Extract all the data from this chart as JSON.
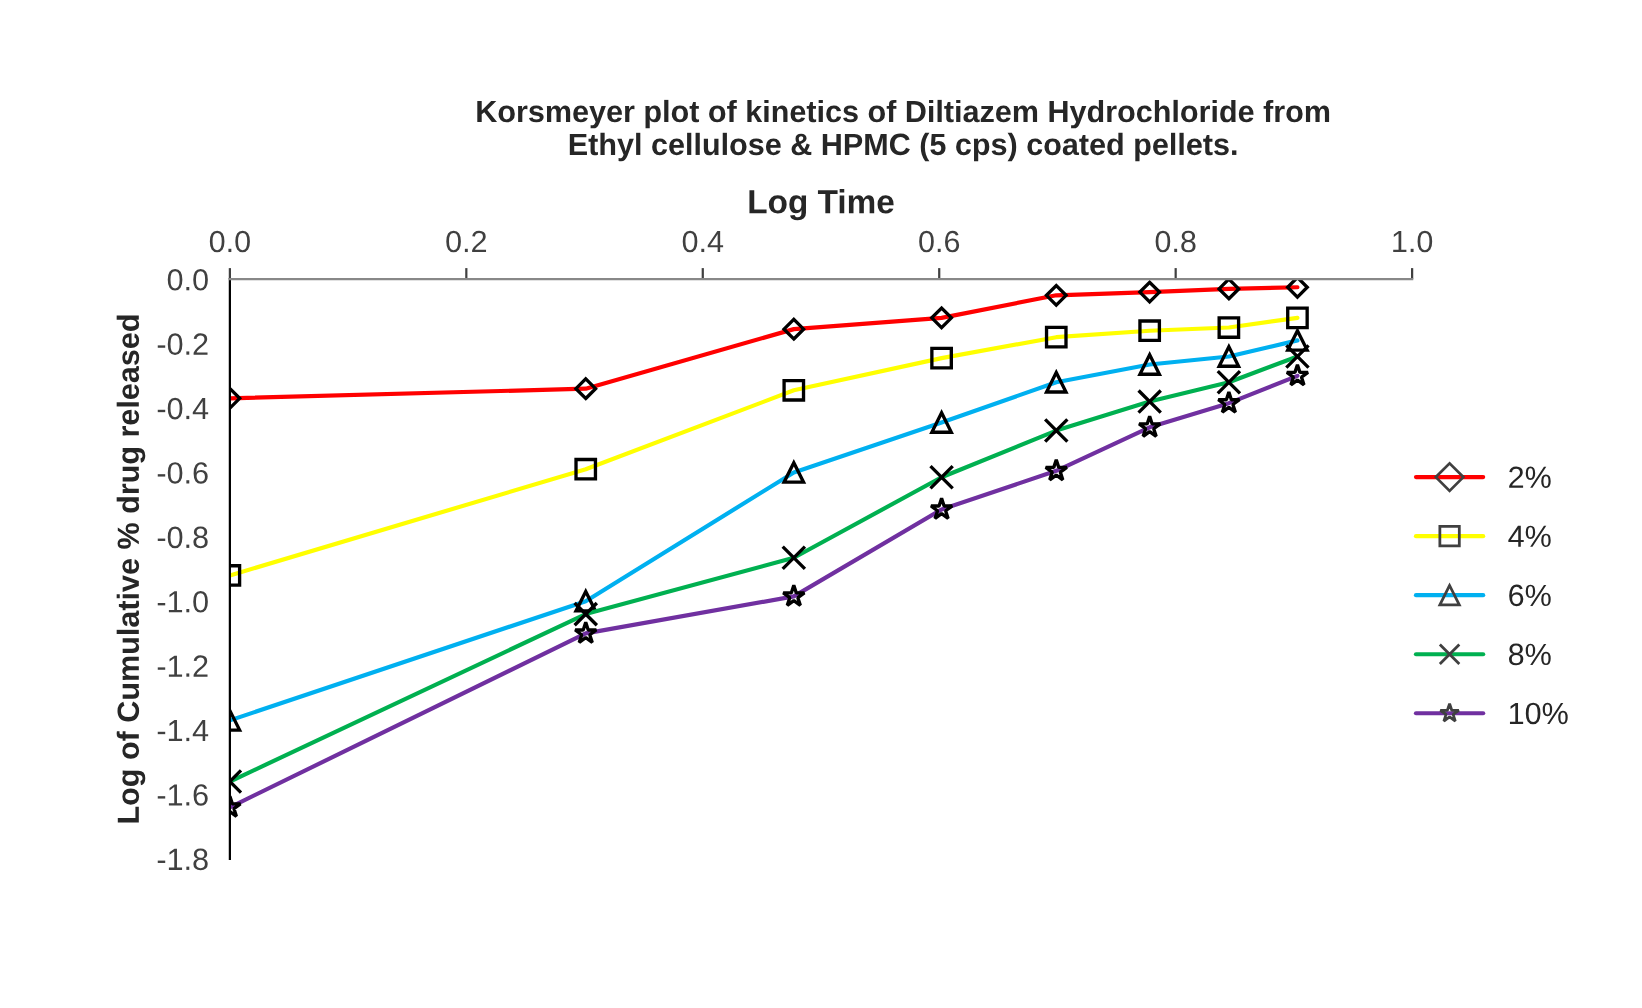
{
  "chart_data": {
    "type": "line",
    "title": "Korsmeyer plot of kinetics of Diltiazem Hydrochloride from\nEthyl cellulose & HPMC (5 cps) coated pellets.",
    "xlabel": "Log Time",
    "ylabel": "Log of Cumulative % drug released",
    "x": [
      0.0,
      0.301,
      0.477,
      0.602,
      0.699,
      0.778,
      0.845,
      0.903
    ],
    "series": [
      {
        "name": "2%",
        "color": "#ff0000",
        "marker": "diamond",
        "values": [
          -0.37,
          -0.34,
          -0.155,
          -0.12,
          -0.05,
          -0.04,
          -0.03,
          -0.025
        ]
      },
      {
        "name": "4%",
        "color": "#ffff00",
        "marker": "square",
        "values": [
          -0.92,
          -0.59,
          -0.345,
          -0.245,
          -0.18,
          -0.16,
          -0.15,
          -0.12
        ]
      },
      {
        "name": "6%",
        "color": "#00b0f0",
        "marker": "triangle",
        "values": [
          -1.37,
          -1.0,
          -0.6,
          -0.445,
          -0.32,
          -0.265,
          -0.24,
          -0.19
        ]
      },
      {
        "name": "8%",
        "color": "#00b050",
        "marker": "cross",
        "values": [
          -1.56,
          -1.04,
          -0.865,
          -0.615,
          -0.47,
          -0.38,
          -0.32,
          -0.24
        ]
      },
      {
        "name": "10%",
        "color": "#7030a0",
        "marker": "star",
        "values": [
          -1.64,
          -1.1,
          -0.985,
          -0.715,
          -0.595,
          -0.46,
          -0.385,
          -0.3
        ]
      }
    ],
    "xlim": [
      0.0,
      1.0
    ],
    "xticks": [
      {
        "value": 0.0,
        "label": "0.0"
      },
      {
        "value": 0.2,
        "label": "0.2"
      },
      {
        "value": 0.4,
        "label": "0.4"
      },
      {
        "value": 0.6,
        "label": "0.6"
      },
      {
        "value": 0.8,
        "label": "0.8"
      },
      {
        "value": 1.0,
        "label": "1.0"
      }
    ],
    "ylim": [
      -1.8,
      0.0
    ],
    "yticks": [
      {
        "value": 0.0,
        "label": "0.0"
      },
      {
        "value": -0.2,
        "label": "-0.2"
      },
      {
        "value": -0.4,
        "label": "-0.4"
      },
      {
        "value": -0.6,
        "label": "-0.6"
      },
      {
        "value": -0.8,
        "label": "-0.8"
      },
      {
        "value": -1.0,
        "label": "-1.0"
      },
      {
        "value": -1.2,
        "label": "-1.2"
      },
      {
        "value": -1.4,
        "label": "-1.4"
      },
      {
        "value": -1.6,
        "label": "-1.6"
      },
      {
        "value": -1.8,
        "label": "-1.8"
      }
    ],
    "grid": false,
    "legend": "right",
    "line_style": "solid"
  }
}
